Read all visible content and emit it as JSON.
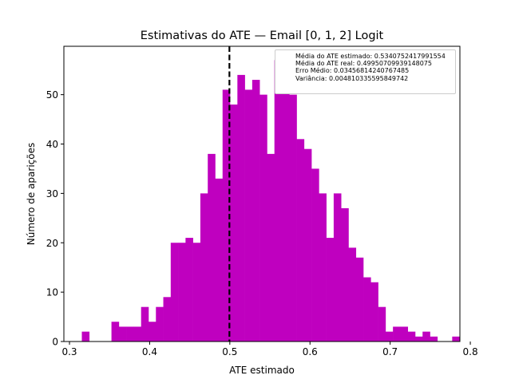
{
  "chart_data": {
    "type": "bar",
    "title": "Estimativas do ATE — Email [0, 1, 2] Logit",
    "xlabel": "ATE estimado",
    "ylabel": "Número de aparições",
    "xlim": [
      0.293,
      0.787
    ],
    "ylim": [
      0,
      59.8
    ],
    "xticks": [
      0.3,
      0.4,
      0.5,
      0.6,
      0.7,
      0.8
    ],
    "xtick_labels": [
      "0.3",
      "0.4",
      "0.5",
      "0.6",
      "0.7",
      "0.8"
    ],
    "yticks": [
      0,
      10,
      20,
      30,
      40,
      50
    ],
    "ytick_labels": [
      "0",
      "10",
      "20",
      "30",
      "40",
      "50"
    ],
    "bin_start": 0.3154,
    "bin_width": 0.00924,
    "counts": [
      2,
      0,
      0,
      0,
      4,
      3,
      3,
      3,
      7,
      4,
      7,
      9,
      20,
      20,
      21,
      20,
      30,
      38,
      33,
      51,
      48,
      54,
      51,
      53,
      50,
      38,
      57,
      56,
      50,
      41,
      39,
      35,
      30,
      21,
      30,
      27,
      19,
      17,
      13,
      12,
      7,
      2,
      3,
      3,
      2,
      1,
      2,
      1,
      0,
      0,
      1
    ],
    "bar_color": "#bf00bf",
    "vline": {
      "x": 0.4995,
      "style": "dashed",
      "color": "#000000"
    },
    "legend_placement": "top-right",
    "legend_entries": [
      "Média do ATE estimado: 0.5340752417991554",
      "Média do ATE real: 0.49950709939148075",
      "Erro Médio: 0.03456814240767485",
      "Variância: 0.004810335595849742"
    ]
  }
}
